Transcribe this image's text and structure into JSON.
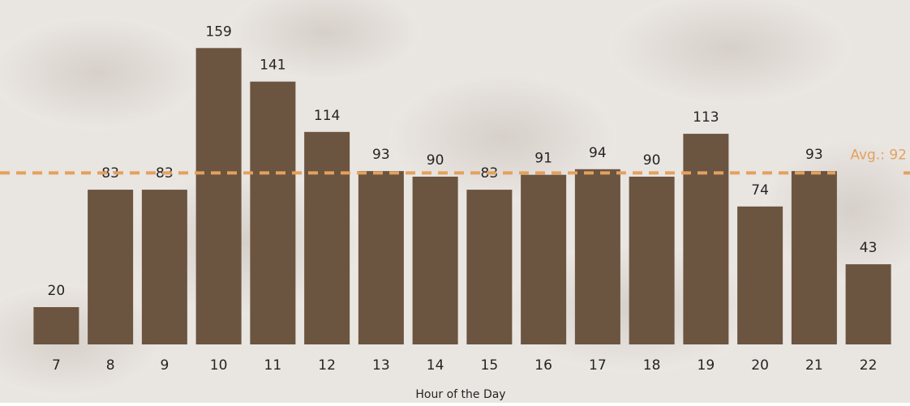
{
  "chart_data": {
    "type": "bar",
    "x_label": "Hour of the Day",
    "categories": [
      "7",
      "8",
      "9",
      "10",
      "11",
      "12",
      "13",
      "14",
      "15",
      "16",
      "17",
      "18",
      "19",
      "20",
      "21",
      "22"
    ],
    "values": [
      20,
      83,
      83,
      159,
      141,
      114,
      93,
      90,
      83,
      91,
      94,
      90,
      113,
      74,
      93,
      43
    ],
    "color": "#6b5440",
    "ylim": [
      0,
      180
    ],
    "average": {
      "value": 92,
      "label": "Avg.: 92",
      "color": "#e3a15f"
    }
  }
}
